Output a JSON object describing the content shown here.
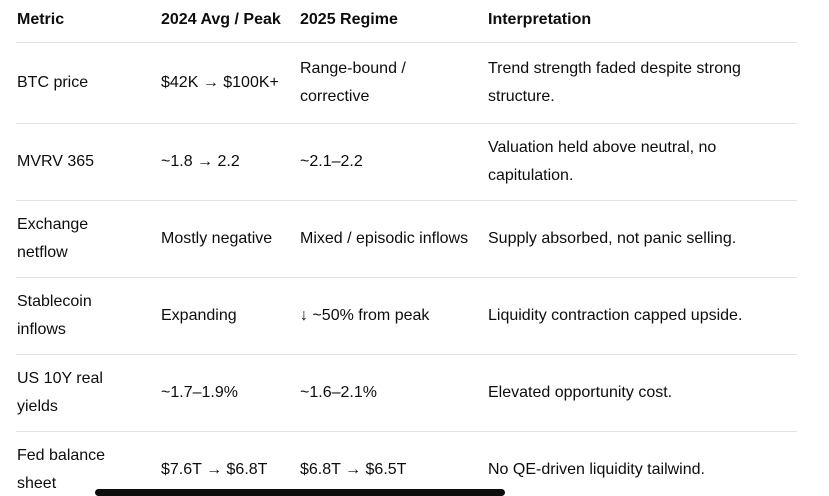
{
  "table": {
    "columns": [
      "Metric",
      "2024 Avg / Peak",
      "2025 Regime",
      "Interpretation"
    ],
    "rows": [
      {
        "metric": "BTC price",
        "avg_peak": "$42K → $100K+",
        "regime": "Range-bound / corrective",
        "interpretation": "Trend strength faded despite strong structure."
      },
      {
        "metric": "MVRV 365",
        "avg_peak": "~1.8 → 2.2",
        "regime": "~2.1–2.2",
        "interpretation": "Valuation held above neutral, no capitulation."
      },
      {
        "metric": "Exchange netflow",
        "avg_peak": "Mostly negative",
        "regime": "Mixed / episodic inflows",
        "interpretation": "Supply absorbed, not panic selling."
      },
      {
        "metric": "Stablecoin inflows",
        "avg_peak": "Expanding",
        "regime": "↓ ~50% from peak",
        "interpretation": "Liquidity contraction capped upside."
      },
      {
        "metric": "US 10Y real yields",
        "avg_peak": "~1.7–1.9%",
        "regime": "~1.6–2.1%",
        "interpretation": "Elevated opportunity cost."
      },
      {
        "metric": "Fed balance sheet",
        "avg_peak": "$7.6T → $6.8T",
        "regime": "$6.8T → $6.5T",
        "interpretation": "No QE-driven liquidity tailwind."
      }
    ]
  },
  "colors": {
    "text": "#0d0d0d",
    "divider": "#e3e3e3",
    "background": "#ffffff",
    "scrollbar_thumb": "#0d0d0d"
  }
}
